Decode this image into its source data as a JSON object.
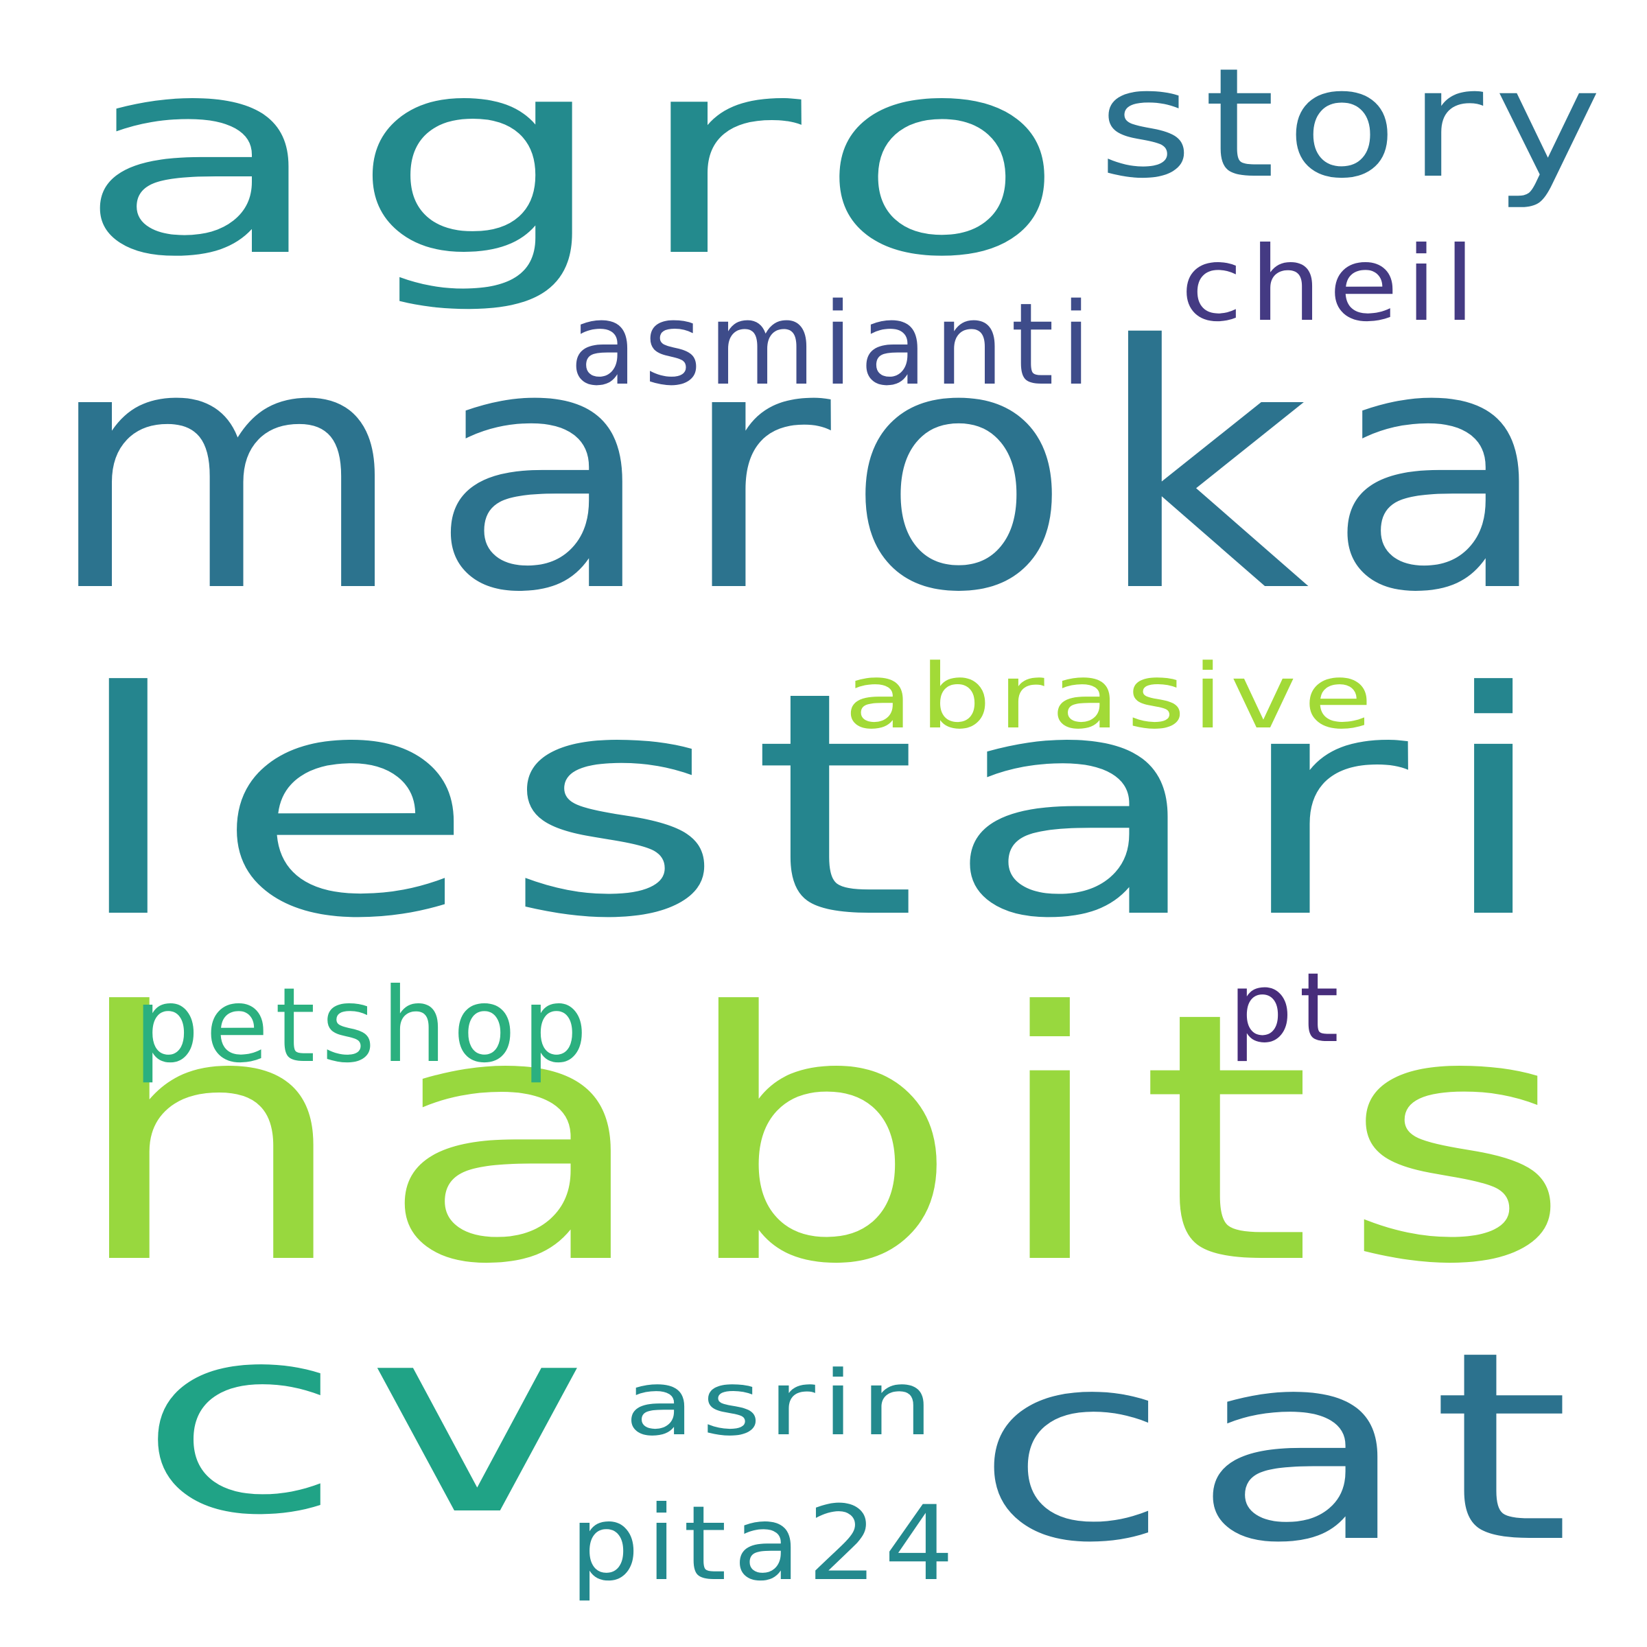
{
  "words": [
    {
      "text": "agro",
      "color": "#238A8D"
    },
    {
      "text": "maroka",
      "color": "#2C738E"
    },
    {
      "text": "story",
      "color": "#2C728E"
    },
    {
      "text": "cheil",
      "color": "#443A83"
    },
    {
      "text": "asmianti",
      "color": "#3E4C8A"
    },
    {
      "text": "lestari",
      "color": "#25858E"
    },
    {
      "text": "abrasive",
      "color": "#A2DA37"
    },
    {
      "text": "habits",
      "color": "#98D83E"
    },
    {
      "text": "petshop",
      "color": "#2BB07F"
    },
    {
      "text": "pt",
      "color": "#472D7B"
    },
    {
      "text": "cv",
      "color": "#20A386"
    },
    {
      "text": "cat",
      "color": "#2C728E"
    },
    {
      "text": "asrin",
      "color": "#238A8D"
    },
    {
      "text": "pita24",
      "color": "#23898E"
    }
  ]
}
